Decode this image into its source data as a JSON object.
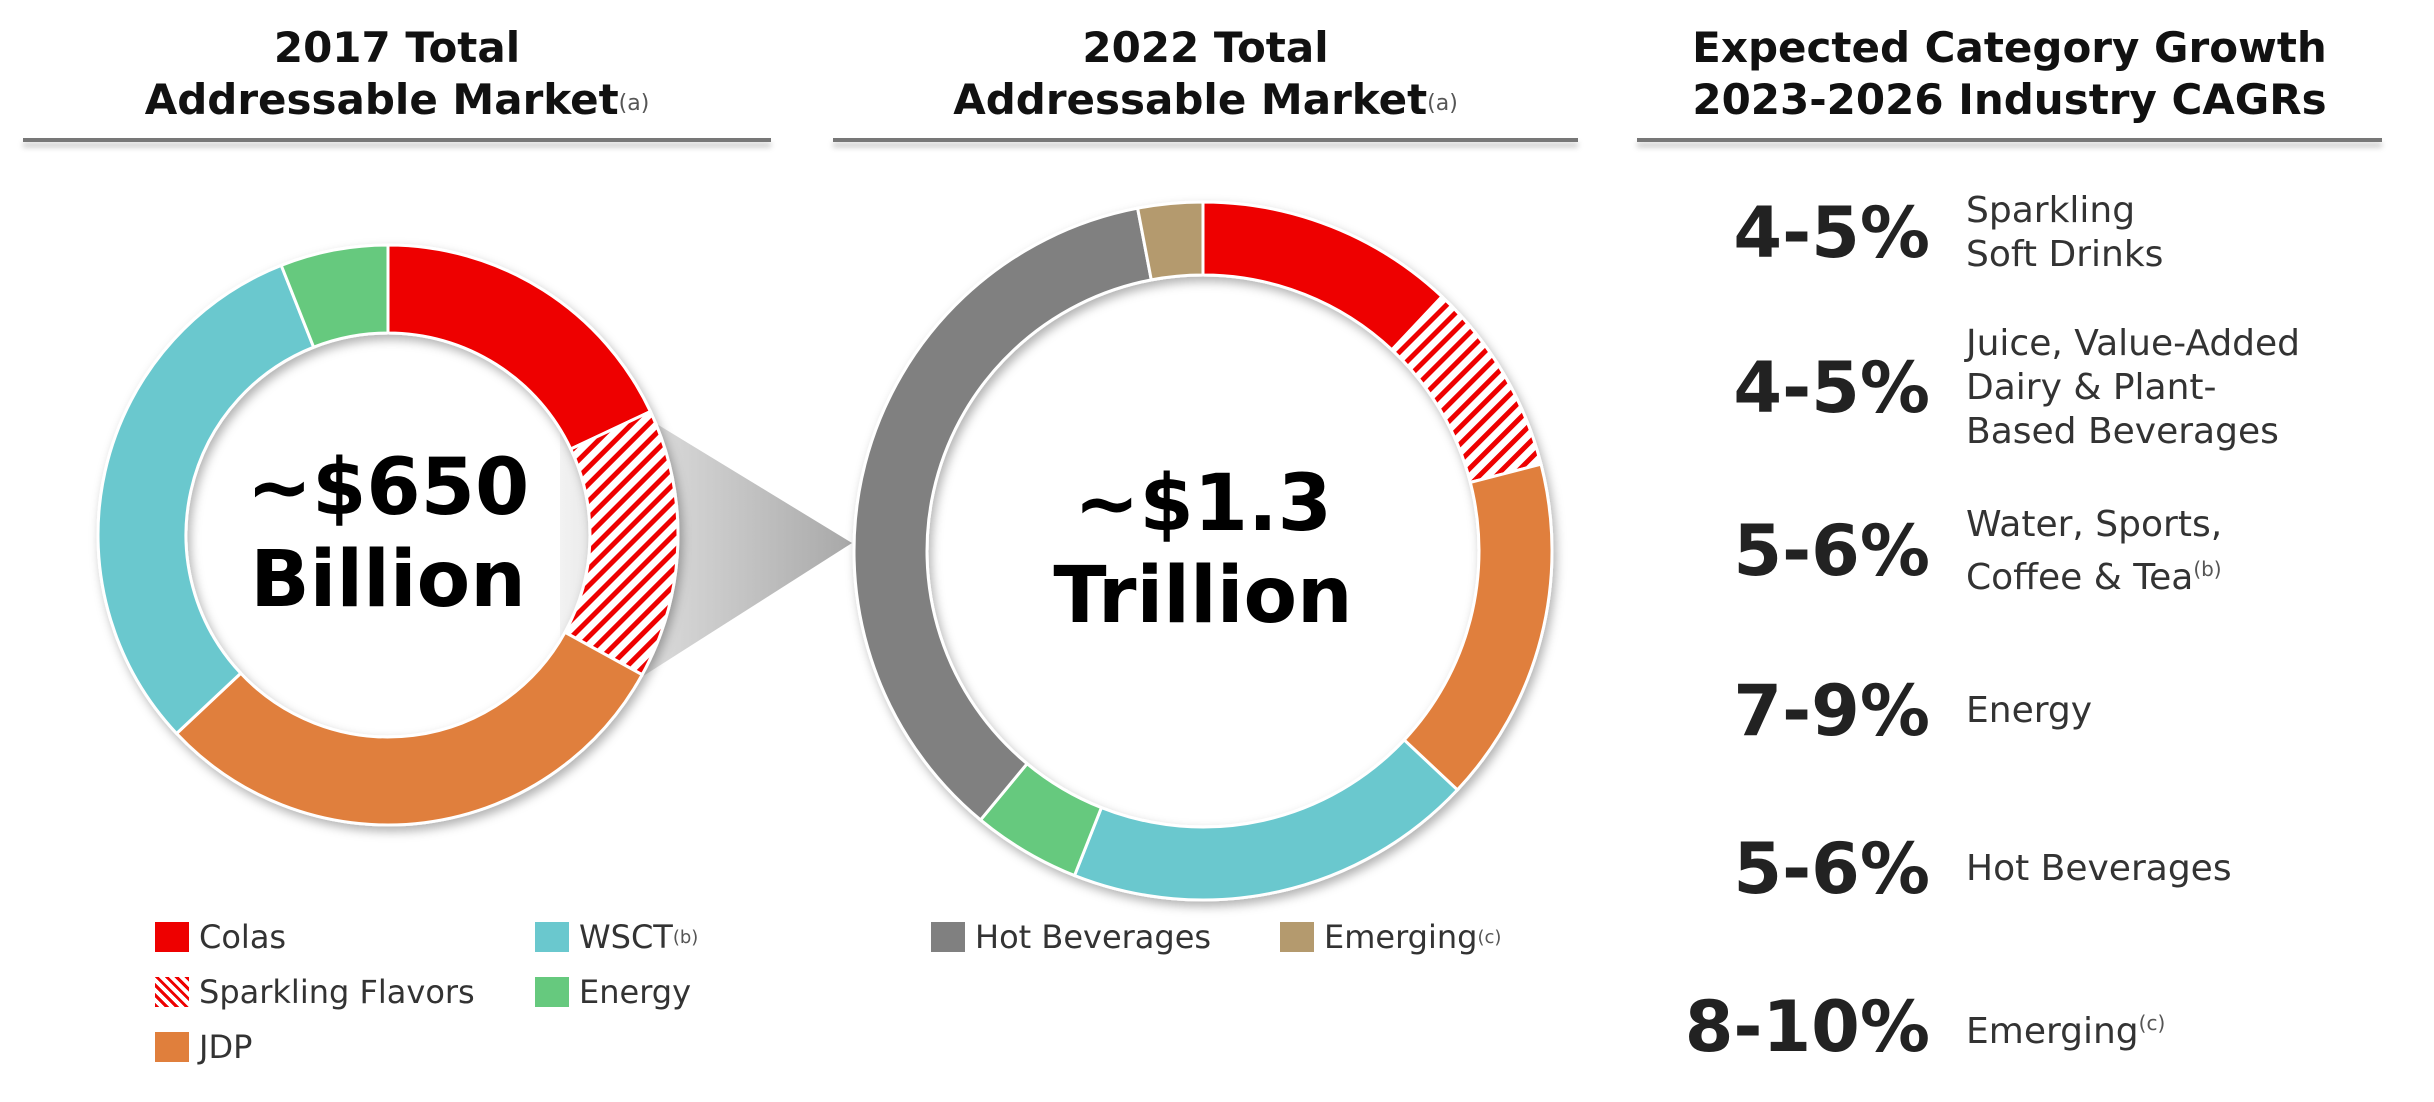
{
  "chart_data": [
    {
      "type": "pie",
      "variant": "donut",
      "title": "2017 Total Addressable Market",
      "title_note": "(a)",
      "center_label": [
        "~$650",
        "Billion"
      ],
      "slices": [
        {
          "name": "Colas",
          "value": 18,
          "color": "#EE0000",
          "pattern": "solid"
        },
        {
          "name": "Sparkling Flavors",
          "value": 15,
          "color": "#EE0000",
          "pattern": "hatch"
        },
        {
          "name": "JDP",
          "value": 30,
          "color": "#E07F3C",
          "pattern": "solid"
        },
        {
          "name": "WSCT",
          "note": "(b)",
          "value": 31,
          "color": "#6AC8CE",
          "pattern": "solid"
        },
        {
          "name": "Energy",
          "value": 6,
          "color": "#66C97E",
          "pattern": "solid"
        }
      ],
      "value_unit": "approx. % share"
    },
    {
      "type": "pie",
      "variant": "donut",
      "title": "2022 Total Addressable Market",
      "title_note": "(a)",
      "center_label": [
        "~$1.3",
        "Trillion"
      ],
      "slices": [
        {
          "name": "Colas",
          "value": 12,
          "color": "#EE0000",
          "pattern": "solid"
        },
        {
          "name": "Sparkling Flavors",
          "value": 9,
          "color": "#EE0000",
          "pattern": "hatch"
        },
        {
          "name": "JDP",
          "value": 16,
          "color": "#E07F3C",
          "pattern": "solid"
        },
        {
          "name": "WSCT",
          "value": 19,
          "color": "#6AC8CE",
          "pattern": "solid"
        },
        {
          "name": "Energy",
          "value": 5,
          "color": "#66C97E",
          "pattern": "solid"
        },
        {
          "name": "Hot Beverages",
          "value": 36,
          "color": "#808080",
          "pattern": "solid"
        },
        {
          "name": "Emerging",
          "note": "(c)",
          "value": 3,
          "color": "#B49A6E",
          "pattern": "solid"
        }
      ],
      "value_unit": "approx. % share"
    }
  ],
  "headers": {
    "h2017": [
      "2017 Total",
      "Addressable Market",
      "(a)"
    ],
    "h2022": [
      "2022 Total",
      "Addressable Market",
      "(a)"
    ],
    "growth": [
      "Expected Category Growth",
      "2023-2026 Industry CAGRs"
    ]
  },
  "legend_2017": [
    {
      "label": "Colas",
      "note": ""
    },
    {
      "label": "WSCT",
      "note": "(b)"
    },
    {
      "label": "Sparkling Flavors",
      "note": ""
    },
    {
      "label": "Energy",
      "note": ""
    },
    {
      "label": "JDP",
      "note": ""
    }
  ],
  "legend_2022": [
    {
      "label": "Hot Beverages",
      "note": ""
    },
    {
      "label": "Emerging",
      "note": "(c)"
    }
  ],
  "growth": [
    {
      "pct": "4-5%",
      "lines": [
        "Sparkling",
        "Soft Drinks"
      ],
      "note": ""
    },
    {
      "pct": "4-5%",
      "lines": [
        "Juice, Value-Added",
        "Dairy & Plant-",
        "Based Beverages"
      ],
      "note": ""
    },
    {
      "pct": "5-6%",
      "lines": [
        "Water, Sports,",
        "Coffee & Tea"
      ],
      "note": "(b)"
    },
    {
      "pct": "7-9%",
      "lines": [
        "Energy"
      ],
      "note": ""
    },
    {
      "pct": "5-6%",
      "lines": [
        "Hot Beverages"
      ],
      "note": ""
    },
    {
      "pct": "8-10%",
      "lines": [
        "Emerging"
      ],
      "note": "(c)"
    }
  ]
}
